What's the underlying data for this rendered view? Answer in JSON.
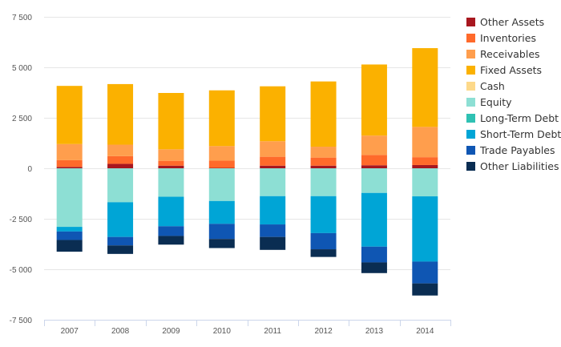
{
  "chart_data": {
    "type": "bar",
    "stacked": true,
    "title": "",
    "xlabel": "",
    "ylabel": "",
    "ylim": [
      -7500,
      7500
    ],
    "yticks": [
      7500,
      5000,
      2500,
      0,
      -2500,
      -5000,
      -7500
    ],
    "ytick_labels": [
      "7 500",
      "5 000",
      "2 500",
      "0",
      "-2 500",
      "-5 000",
      "-7 500"
    ],
    "grid": true,
    "legend_position": "right",
    "categories": [
      "2007",
      "2008",
      "2009",
      "2010",
      "2011",
      "2012",
      "2013",
      "2014"
    ],
    "series": [
      {
        "name": "Other Assets",
        "color": "#a8171f",
        "values": [
          70,
          220,
          130,
          20,
          130,
          130,
          150,
          160
        ]
      },
      {
        "name": "Inventories",
        "color": "#ff6a2b",
        "values": [
          330,
          380,
          240,
          360,
          440,
          400,
          510,
          390
        ]
      },
      {
        "name": "Receivables",
        "color": "#ff9e4d",
        "values": [
          800,
          570,
          570,
          720,
          770,
          540,
          960,
          1500
        ]
      },
      {
        "name": "Fixed Assets",
        "color": "#fbb100",
        "values": [
          2880,
          3000,
          2790,
          2760,
          2720,
          3230,
          3520,
          3900
        ]
      },
      {
        "name": "Cash",
        "color": "#fdd98a",
        "values": [
          0,
          0,
          0,
          0,
          0,
          0,
          0,
          0
        ]
      },
      {
        "name": "Equity",
        "color": "#8ddfd4",
        "values": [
          -2900,
          -1680,
          -1410,
          -1620,
          -1380,
          -1380,
          -1220,
          -1390
        ]
      },
      {
        "name": "Long-Term Debt",
        "color": "#2fc1b3",
        "values": [
          0,
          0,
          0,
          0,
          0,
          0,
          0,
          0
        ]
      },
      {
        "name": "Short-Term Debt",
        "color": "#00a5d6",
        "values": [
          -230,
          -1720,
          -1460,
          -1130,
          -1400,
          -1830,
          -2660,
          -3230
        ]
      },
      {
        "name": "Trade Payables",
        "color": "#0f56b3",
        "values": [
          -420,
          -420,
          -480,
          -750,
          -620,
          -800,
          -780,
          -1080
        ]
      },
      {
        "name": "Other Liabilities",
        "color": "#0a2d52",
        "values": [
          -580,
          -420,
          -430,
          -450,
          -640,
          -380,
          -530,
          -600
        ]
      }
    ]
  }
}
